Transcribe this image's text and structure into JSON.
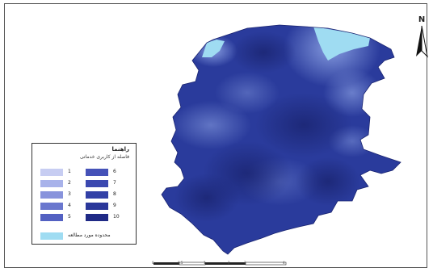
{
  "map": {
    "north_label": "N",
    "fill_color": "#2a3b9c",
    "dark_color": "#1c2a7f",
    "light_color": "#8fa5e6",
    "study_area_color": "#9fdcf2"
  },
  "legend": {
    "title": "راهنما",
    "subtitle": "فاصله از کاربری خدماتی",
    "classes": [
      {
        "label": "1",
        "color": "#c7cdf2"
      },
      {
        "label": "2",
        "color": "#a8b2ea"
      },
      {
        "label": "3",
        "color": "#8893dc"
      },
      {
        "label": "4",
        "color": "#6a77ce"
      },
      {
        "label": "5",
        "color": "#5361c2"
      },
      {
        "label": "6",
        "color": "#4552b8"
      },
      {
        "label": "7",
        "color": "#3b48b0"
      },
      {
        "label": "8",
        "color": "#3240a6"
      },
      {
        "label": "9",
        "color": "#2a379a"
      },
      {
        "label": "10",
        "color": "#1f2a86"
      }
    ],
    "study_area": {
      "label": "محدوده مورد مطالعه",
      "color": "#9fdcf2"
    }
  },
  "scale_bar": {
    "labels": [
      "0",
      "0.5",
      "1",
      "2",
      "3",
      "4"
    ]
  }
}
